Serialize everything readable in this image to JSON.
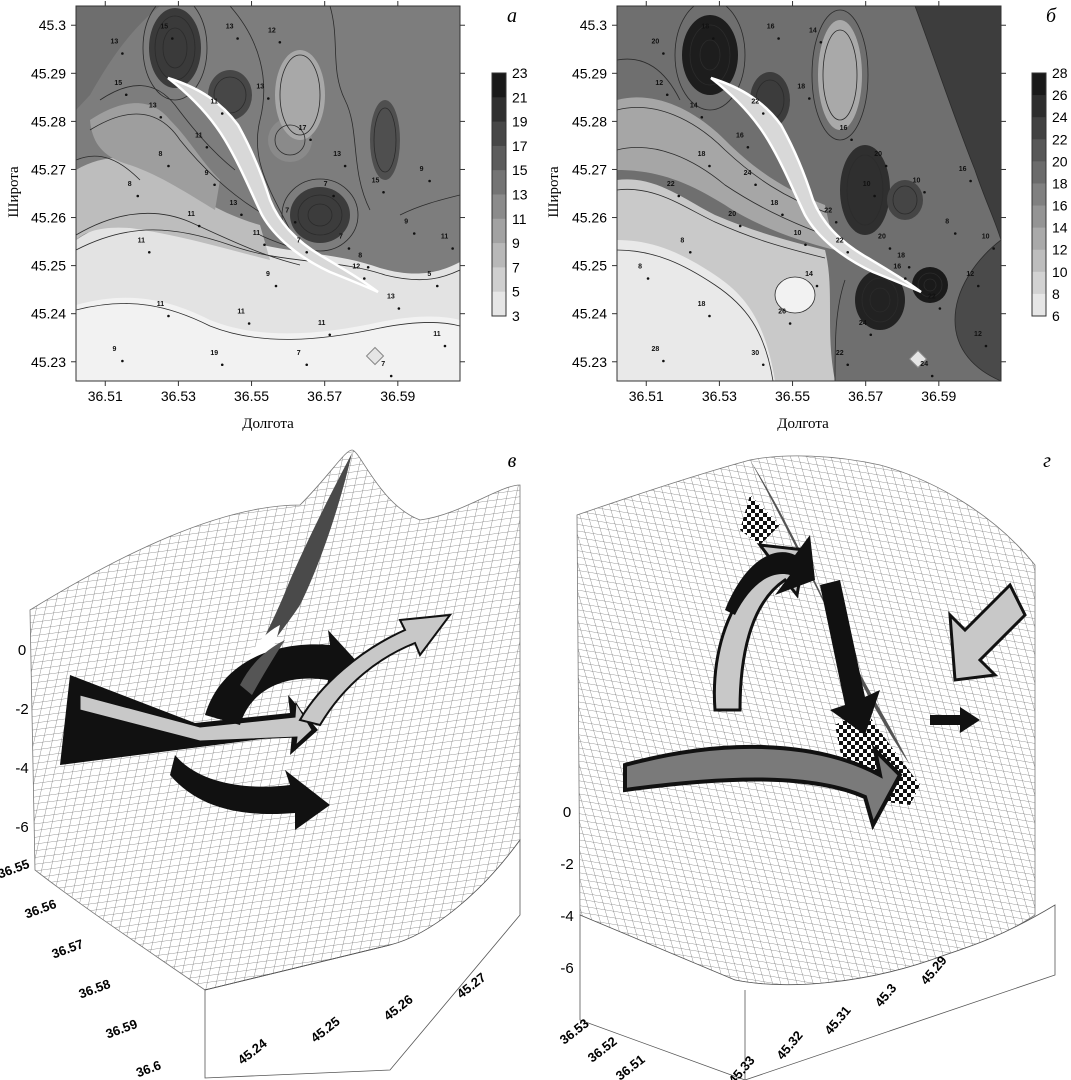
{
  "chart_data": [
    {
      "panel_label": "а",
      "type": "heatmap",
      "xlabel": "Долгота",
      "ylabel": "Широта",
      "x_ticks": [
        "36.51",
        "36.53",
        "36.55",
        "36.57",
        "36.59"
      ],
      "y_ticks": [
        "45.3",
        "45.29",
        "45.28",
        "45.27",
        "45.26",
        "45.25",
        "45.24",
        "45.23"
      ],
      "xlim": [
        36.502,
        36.607
      ],
      "ylim": [
        45.226,
        45.304
      ],
      "colorbar_ticks": [
        "23",
        "21",
        "19",
        "17",
        "15",
        "13",
        "11",
        "9",
        "7",
        "5",
        "3"
      ],
      "colorbar_range": [
        3,
        23
      ],
      "contour_labels": [
        "13",
        "15",
        "13",
        "12",
        "15",
        "13",
        "11",
        "13",
        "11",
        "17",
        "13",
        "8",
        "8",
        "9",
        "7",
        "15",
        "9",
        "13",
        "11",
        "7",
        "9",
        "11",
        "11",
        "7",
        "7",
        "8",
        "5",
        "9",
        "12",
        "11",
        "11",
        "11",
        "13",
        "9",
        "19",
        "7",
        "7",
        "11",
        "11"
      ]
    },
    {
      "panel_label": "б",
      "type": "heatmap",
      "xlabel": "Долгота",
      "ylabel": "Широта",
      "x_ticks": [
        "36.51",
        "36.53",
        "36.55",
        "36.57",
        "36.59"
      ],
      "y_ticks": [
        "45.3",
        "45.29",
        "45.28",
        "45.27",
        "45.26",
        "45.25",
        "45.24",
        "45.23"
      ],
      "xlim": [
        36.502,
        36.607
      ],
      "ylim": [
        45.226,
        45.304
      ],
      "colorbar_ticks": [
        "28",
        "26",
        "24",
        "22",
        "20",
        "18",
        "16",
        "14",
        "12",
        "10",
        "8",
        "6"
      ],
      "colorbar_range": [
        6,
        28
      ],
      "contour_labels": [
        "20",
        "18",
        "16",
        "14",
        "12",
        "14",
        "22",
        "18",
        "16",
        "16",
        "20",
        "18",
        "22",
        "24",
        "10",
        "10",
        "16",
        "18",
        "20",
        "22",
        "8",
        "8",
        "10",
        "22",
        "20",
        "18",
        "12",
        "14",
        "16",
        "18",
        "26",
        "24",
        "22",
        "28",
        "30",
        "22",
        "24",
        "12",
        "10",
        "8"
      ]
    },
    {
      "panel_label": "в",
      "type": "3d-surface",
      "z_ticks": [
        "0",
        "-2",
        "-4",
        "-6"
      ],
      "longitude_ticks": [
        "36.55",
        "36.56",
        "36.57",
        "36.58",
        "36.59",
        "36.6"
      ],
      "latitude_ticks": [
        "45.24",
        "45.25",
        "45.26",
        "45.27"
      ]
    },
    {
      "panel_label": "г",
      "type": "3d-surface",
      "z_ticks": [
        "0",
        "-2",
        "-4",
        "-6"
      ],
      "longitude_ticks": [
        "36.53",
        "36.52",
        "36.51"
      ],
      "latitude_ticks": [
        "45.33",
        "45.32",
        "45.31",
        "45.3",
        "45.29"
      ]
    }
  ],
  "colors": {
    "colormap_low": "#f7f7f7",
    "colormap_high": "#151515",
    "contour_line": "#2b2b2b",
    "mesh_line": "#6a6a6a",
    "arrow_dark": "#111111",
    "arrow_light": "#c8c8c8",
    "arrow_mid": "#7a7a7a"
  }
}
